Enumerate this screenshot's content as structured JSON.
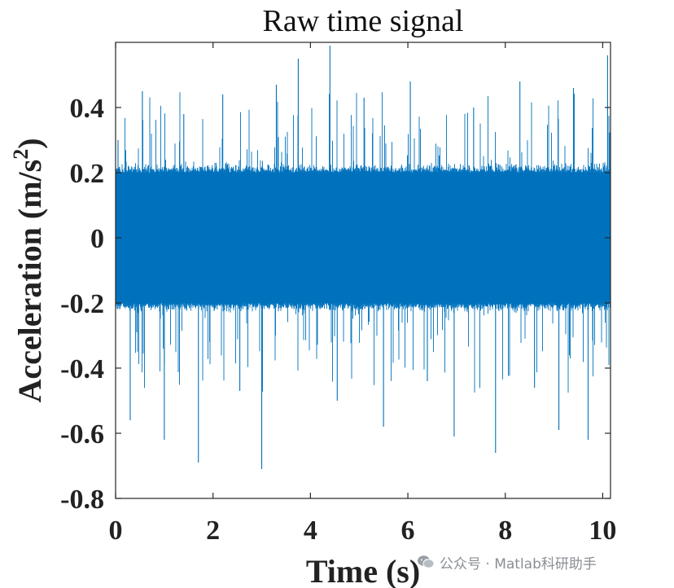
{
  "chart_data": {
    "type": "line",
    "title": "Raw time signal",
    "xlabel": "Time (s)",
    "ylabel": "Acceleration (m/s^2)",
    "ylabel_parts": {
      "main": "Acceleration (m/s",
      "sup": "2",
      "close": ")"
    },
    "xlim": [
      0,
      10.16
    ],
    "ylim": [
      -0.8,
      0.6
    ],
    "xticks": [
      0,
      2,
      4,
      6,
      8,
      10
    ],
    "yticks": [
      -0.8,
      -0.6,
      -0.4,
      -0.2,
      0,
      0.2,
      0.4
    ],
    "xtick_labels": [
      "0",
      "2",
      "4",
      "6",
      "8",
      "10"
    ],
    "ytick_labels": [
      "-0.8",
      "-0.6",
      "-0.4",
      "-0.2",
      "0",
      "0.2",
      "0.4"
    ],
    "grid": false,
    "line_color": "#0072BD",
    "series": [
      {
        "style": "dense noise, band roughly -0.2 to 0.2",
        "band": [
          -0.2,
          0.2
        ],
        "x": [
          0.05,
          0.3,
          0.55,
          1.0,
          1.4,
          1.7,
          2.2,
          2.55,
          3.0,
          3.3,
          3.75,
          4.4,
          4.55,
          5.1,
          5.5,
          6.05,
          6.4,
          6.95,
          7.35,
          7.8,
          8.3,
          8.6,
          9.1,
          9.4,
          9.7,
          10.1
        ],
        "y": [
          0.3,
          -0.56,
          0.45,
          -0.62,
          0.38,
          -0.69,
          0.44,
          -0.47,
          -0.71,
          0.47,
          0.55,
          0.59,
          -0.5,
          0.43,
          -0.58,
          0.48,
          -0.44,
          -0.61,
          0.4,
          -0.66,
          0.48,
          -0.46,
          -0.59,
          0.46,
          -0.62,
          0.56
        ]
      }
    ]
  },
  "watermark": {
    "text": "公众号 · Matlab科研助手",
    "icon": "wechat-icon"
  }
}
